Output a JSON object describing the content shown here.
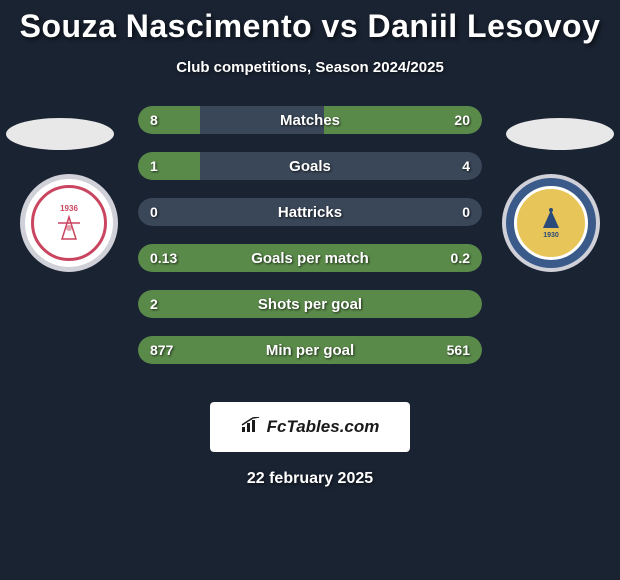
{
  "title": "Souza Nascimento vs Daniil Lesovoy",
  "subtitle": "Club competitions, Season 2024/2025",
  "footer_brand": "FcTables.com",
  "footer_date": "22 february 2025",
  "colors": {
    "background": "#1a2332",
    "bar_bg": "#3a4758",
    "bar_fill": "#5a8a4a",
    "text": "#ffffff",
    "badge_bg": "#ffffff",
    "badge_text": "#1a1a1a"
  },
  "crests": {
    "left": {
      "year": "1936",
      "border_color": "#c94560"
    },
    "right": {
      "year": "1930",
      "bg_color": "#3a5a8a",
      "inner_color": "#e8c558"
    }
  },
  "stats": [
    {
      "label": "Matches",
      "left_val": "8",
      "right_val": "20",
      "left_pct": 18,
      "right_pct": 46,
      "full": false
    },
    {
      "label": "Goals",
      "left_val": "1",
      "right_val": "4",
      "left_pct": 18,
      "right_pct": 0,
      "full": false
    },
    {
      "label": "Hattricks",
      "left_val": "0",
      "right_val": "0",
      "left_pct": 0,
      "right_pct": 0,
      "full": false
    },
    {
      "label": "Goals per match",
      "left_val": "0.13",
      "right_val": "0.2",
      "left_pct": 0,
      "right_pct": 0,
      "full": true
    },
    {
      "label": "Shots per goal",
      "left_val": "2",
      "right_val": "",
      "left_pct": 0,
      "right_pct": 0,
      "full": true
    },
    {
      "label": "Min per goal",
      "left_val": "877",
      "right_val": "561",
      "left_pct": 0,
      "right_pct": 0,
      "full": true
    }
  ]
}
